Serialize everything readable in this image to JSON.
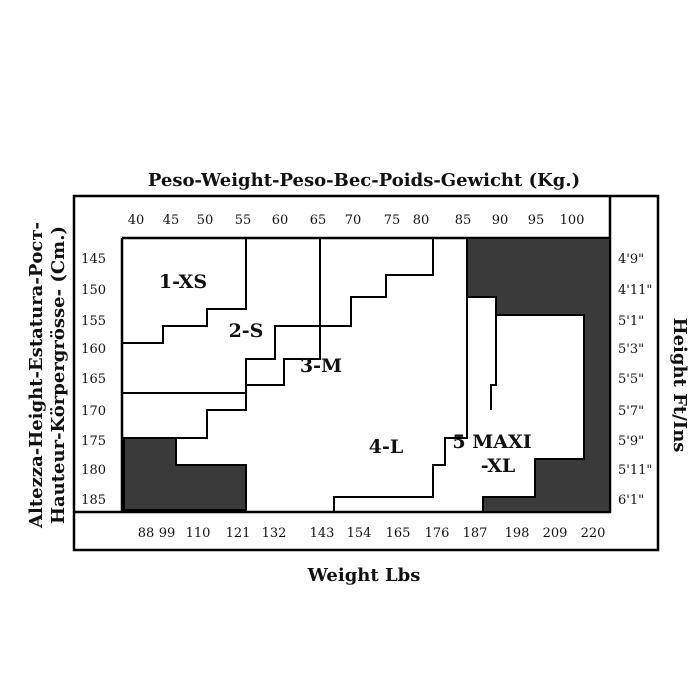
{
  "top_title": "Peso-Weight-Peso-Bec-Poids-Gewicht (Kg.)",
  "bottom_title": "Weight Lbs",
  "left_title_line1": "Altezza-Height-Estatura-Рост-",
  "left_title_line2": "Hauteur-Körpergrösse- (Cm.)",
  "right_title": "Height Ft/Ins",
  "kg_ticks": [
    "40",
    "45",
    "50",
    "55",
    "60",
    "65",
    "70",
    "75",
    "80",
    "85",
    "90",
    "95",
    "100"
  ],
  "lbs_ticks": [
    "88",
    "99",
    "110",
    "121",
    "132",
    "143",
    "154",
    "165",
    "176",
    "187",
    "198",
    "209",
    "220"
  ],
  "cm_ticks": [
    "145",
    "150",
    "155",
    "160",
    "165",
    "170",
    "175",
    "180",
    "185"
  ],
  "ftin_ticks": [
    "4'9\"",
    "4'11\"",
    "5'1\"",
    "5'3\"",
    "5'5\"",
    "5'7\"",
    "5'9\"",
    "5'11\"",
    "6'1\""
  ],
  "zones": [
    {
      "id": "xs",
      "label": "1-XS"
    },
    {
      "id": "s",
      "label": "2-S"
    },
    {
      "id": "m",
      "label": "3-M"
    },
    {
      "id": "l",
      "label": "4-L"
    },
    {
      "id": "xl",
      "label_line1": "5 MAXI",
      "label_line2": "-XL"
    }
  ],
  "colors": {
    "frame": "#000000",
    "shade": "#3a3a3a",
    "background": "#ffffff"
  }
}
